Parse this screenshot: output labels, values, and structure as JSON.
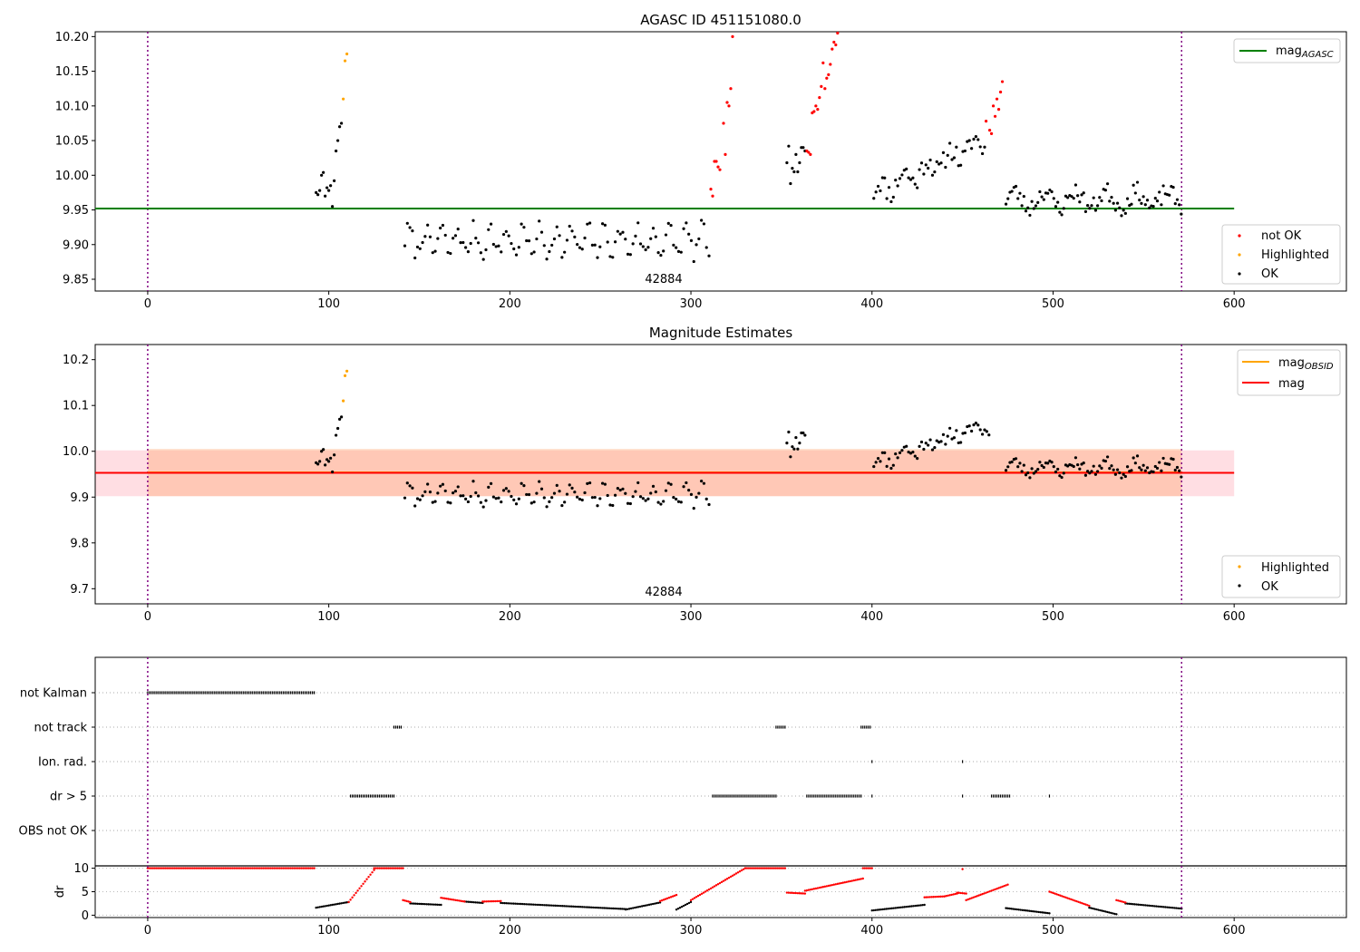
{
  "chart_data": [
    {
      "type": "scatter",
      "title": "AGASC ID 451151080.0",
      "xlim": [
        -29,
        662
      ],
      "ylim": [
        9.833,
        10.207
      ],
      "xticks": [
        0,
        100,
        200,
        300,
        400,
        500,
        600
      ],
      "yticks": [
        9.85,
        9.9,
        9.95,
        10.0,
        10.05,
        10.1,
        10.15,
        10.2
      ],
      "ytick_labels": [
        "9.85",
        "9.90",
        "9.95",
        "10.00",
        "10.05",
        "10.10",
        "10.15",
        "10.20"
      ],
      "vlines": [
        0,
        571
      ],
      "hline": {
        "name": "mag_AGASC",
        "value": 9.952,
        "x_range": [
          -29,
          600
        ],
        "color": "#008000"
      },
      "annotation": {
        "text": "42884",
        "x": 285,
        "y": 9.838
      },
      "legend_line": {
        "label": "mag",
        "sub": "AGASC",
        "color": "#008000"
      },
      "legend_points": [
        {
          "label": "not OK",
          "color": "#ff0000"
        },
        {
          "label": "Highlighted",
          "color": "#ffa500"
        },
        {
          "label": "OK",
          "color": "#000000"
        }
      ],
      "segments": [
        {
          "status": "OK",
          "points": [
            [
              93,
              9.975
            ],
            [
              94,
              9.972
            ],
            [
              95,
              9.978
            ],
            [
              96,
              10.0
            ],
            [
              97,
              10.004
            ],
            [
              98,
              9.97
            ],
            [
              99,
              9.982
            ],
            [
              100,
              9.978
            ],
            [
              101,
              9.985
            ],
            [
              102,
              9.955
            ],
            [
              103,
              9.992
            ],
            [
              104,
              10.035
            ],
            [
              105,
              10.05
            ],
            [
              106,
              10.07
            ],
            [
              107,
              10.075
            ]
          ]
        },
        {
          "status": "Highlighted",
          "points": [
            [
              108,
              10.11
            ],
            [
              109,
              10.165
            ],
            [
              110,
              10.175
            ]
          ]
        },
        {
          "status": "OK",
          "seq": {
            "start": 142,
            "end": 311,
            "step": 1.4,
            "base": 9.905,
            "amp": 0.018,
            "period": 9,
            "jitter": 0.013,
            "seed": 7
          }
        },
        {
          "status": "not OK",
          "points": [
            [
              311,
              9.98
            ],
            [
              312,
              9.97
            ],
            [
              313,
              10.02
            ],
            [
              314,
              10.02
            ],
            [
              315,
              10.012
            ],
            [
              316,
              10.008
            ],
            [
              318,
              10.075
            ],
            [
              319,
              10.03
            ],
            [
              320,
              10.105
            ],
            [
              321,
              10.1
            ],
            [
              322,
              10.125
            ],
            [
              323,
              10.2
            ]
          ]
        },
        {
          "status": "OK",
          "points": [
            [
              353,
              10.018
            ],
            [
              354,
              10.042
            ],
            [
              355,
              9.988
            ],
            [
              356,
              10.01
            ],
            [
              357,
              10.005
            ],
            [
              358,
              10.03
            ],
            [
              359,
              10.005
            ],
            [
              360,
              10.018
            ],
            [
              361,
              10.04
            ],
            [
              362,
              10.04
            ],
            [
              363,
              10.035
            ]
          ]
        },
        {
          "status": "not OK",
          "points": [
            [
              364,
              10.035
            ],
            [
              365,
              10.033
            ],
            [
              366,
              10.03
            ],
            [
              367,
              10.09
            ],
            [
              368,
              10.092
            ],
            [
              369,
              10.1
            ],
            [
              370,
              10.095
            ],
            [
              371,
              10.112
            ],
            [
              372,
              10.128
            ],
            [
              373,
              10.162
            ],
            [
              374,
              10.125
            ],
            [
              375,
              10.14
            ],
            [
              376,
              10.145
            ],
            [
              377,
              10.16
            ],
            [
              378,
              10.182
            ],
            [
              379,
              10.192
            ],
            [
              380,
              10.188
            ],
            [
              381,
              10.205
            ]
          ]
        },
        {
          "status": "OK",
          "seq": {
            "start": 401,
            "end": 463,
            "step": 1.2,
            "base": 9.975,
            "amp": 0.012,
            "period": 13,
            "jitter": 0.016,
            "seed": 11,
            "trend": 0.0012
          }
        },
        {
          "status": "not OK",
          "points": [
            [
              463,
              10.078
            ],
            [
              465,
              10.065
            ],
            [
              466,
              10.06
            ],
            [
              467,
              10.1
            ],
            [
              468,
              10.085
            ],
            [
              469,
              10.11
            ],
            [
              470,
              10.095
            ],
            [
              471,
              10.12
            ],
            [
              472,
              10.135
            ]
          ]
        },
        {
          "status": "OK",
          "seq": {
            "start": 474,
            "end": 571,
            "step": 1.1,
            "base": 9.965,
            "amp": 0.012,
            "period": 17,
            "jitter": 0.013,
            "seed": 23
          }
        }
      ]
    },
    {
      "type": "scatter",
      "title": "Magnitude Estimates",
      "xlim": [
        -29,
        662
      ],
      "ylim": [
        9.667,
        10.233
      ],
      "xticks": [
        0,
        100,
        200,
        300,
        400,
        500,
        600
      ],
      "yticks": [
        9.7,
        9.8,
        9.9,
        10.0,
        10.1,
        10.2
      ],
      "ytick_labels": [
        "9.7",
        "9.8",
        "9.9",
        "10.0",
        "10.1",
        "10.2"
      ],
      "vlines": [
        0,
        571
      ],
      "bands": [
        {
          "x_range": [
            -29,
            600
          ],
          "y_range": [
            9.902,
            10.002
          ],
          "color": "#ffb6c1",
          "opacity": 0.45
        },
        {
          "x_range": [
            0,
            571
          ],
          "y_range": [
            9.902,
            10.005
          ],
          "color": "#ffa060",
          "opacity": 0.35
        }
      ],
      "hlines": [
        {
          "name": "mag_OBSID",
          "value": 9.954,
          "x_range": [
            0,
            571
          ],
          "color": "#ffa500"
        },
        {
          "name": "mag",
          "value": 9.953,
          "x_range": [
            -29,
            600
          ],
          "color": "#ff0000"
        }
      ],
      "annotation": {
        "text": "42884",
        "x": 285,
        "y": 9.69
      },
      "legend_lines": [
        {
          "label": "mag",
          "sub": "OBSID",
          "color": "#ffa500"
        },
        {
          "label": "mag",
          "sub": "",
          "color": "#ff0000"
        }
      ],
      "legend_points": [
        {
          "label": "Highlighted",
          "color": "#ffa500"
        },
        {
          "label": "OK",
          "color": "#000000"
        }
      ],
      "segments": [
        {
          "status": "OK",
          "points": [
            [
              93,
              9.975
            ],
            [
              94,
              9.972
            ],
            [
              95,
              9.978
            ],
            [
              96,
              10.0
            ],
            [
              97,
              10.004
            ],
            [
              98,
              9.97
            ],
            [
              99,
              9.982
            ],
            [
              100,
              9.978
            ],
            [
              101,
              9.985
            ],
            [
              102,
              9.955
            ],
            [
              103,
              9.992
            ],
            [
              104,
              10.035
            ],
            [
              105,
              10.05
            ],
            [
              106,
              10.07
            ],
            [
              107,
              10.075
            ]
          ]
        },
        {
          "status": "Highlighted",
          "points": [
            [
              108,
              10.11
            ],
            [
              109,
              10.165
            ],
            [
              110,
              10.175
            ]
          ]
        },
        {
          "status": "OK",
          "seq": {
            "start": 142,
            "end": 311,
            "step": 1.4,
            "base": 9.905,
            "amp": 0.018,
            "period": 9,
            "jitter": 0.013,
            "seed": 7
          }
        },
        {
          "status": "OK",
          "points": [
            [
              353,
              10.018
            ],
            [
              354,
              10.042
            ],
            [
              355,
              9.988
            ],
            [
              356,
              10.01
            ],
            [
              357,
              10.005
            ],
            [
              358,
              10.03
            ],
            [
              359,
              10.005
            ],
            [
              360,
              10.018
            ],
            [
              361,
              10.04
            ],
            [
              362,
              10.04
            ],
            [
              363,
              10.035
            ]
          ]
        },
        {
          "status": "OK",
          "seq": {
            "start": 401,
            "end": 465,
            "step": 1.2,
            "base": 9.975,
            "amp": 0.012,
            "period": 13,
            "jitter": 0.016,
            "seed": 11,
            "trend": 0.0013
          }
        },
        {
          "status": "OK",
          "seq": {
            "start": 474,
            "end": 571,
            "step": 1.1,
            "base": 9.965,
            "amp": 0.012,
            "period": 17,
            "jitter": 0.013,
            "seed": 23
          }
        }
      ]
    },
    {
      "type": "scatter",
      "title": "",
      "xlim": [
        -29,
        662
      ],
      "categories": [
        "not Kalman",
        "not track",
        "Ion. rad.",
        "dr > 5",
        "OBS not OK"
      ],
      "flags": {
        "not Kalman": [
          [
            0,
            92
          ]
        ],
        "not track": [
          [
            136,
            140
          ],
          [
            347,
            352
          ],
          [
            394,
            399
          ]
        ],
        "Ion. rad.": [
          [
            400,
            400
          ],
          [
            450,
            450
          ]
        ],
        "dr > 5": [
          [
            112,
            136
          ],
          [
            312,
            347
          ],
          [
            364,
            394
          ],
          [
            400,
            400
          ],
          [
            450,
            450
          ],
          [
            466,
            476
          ],
          [
            498,
            498
          ]
        ],
        "OBS not OK": []
      },
      "vlines": [
        0,
        571
      ]
    },
    {
      "type": "scatter",
      "title": "",
      "ylabel": "dr",
      "xlim": [
        -29,
        662
      ],
      "ylim": [
        -0.5,
        10.5
      ],
      "xticks": [
        0,
        100,
        200,
        300,
        400,
        500,
        600
      ],
      "yticks": [
        0,
        5,
        10
      ],
      "ytick_labels": [
        "0",
        "5",
        "10"
      ],
      "vlines": [
        0,
        571
      ],
      "red_ranges": [
        [
          0,
          92,
          10,
          10
        ],
        [
          111,
          125,
          2.8,
          9.6
        ],
        [
          125,
          141,
          10,
          10
        ],
        [
          141,
          145,
          3.2,
          2.8
        ],
        [
          162,
          175,
          3.7,
          2.9
        ],
        [
          185,
          195,
          2.9,
          3
        ],
        [
          283,
          292,
          3.0,
          4.3
        ],
        [
          300,
          330,
          3.2,
          10
        ],
        [
          330,
          352,
          10,
          10
        ],
        [
          353,
          363,
          4.8,
          4.6
        ],
        [
          363,
          395,
          5.2,
          7.8
        ],
        [
          395,
          400,
          10,
          10
        ],
        [
          429,
          440,
          3.8,
          4
        ],
        [
          440,
          447,
          4,
          4.6
        ],
        [
          447,
          452,
          4.8,
          4.6
        ],
        [
          450,
          450,
          9.8,
          9.8
        ],
        [
          452,
          475,
          3.2,
          6.5
        ],
        [
          498,
          520,
          5,
          2
        ],
        [
          535,
          540,
          3.2,
          2.7
        ]
      ],
      "black_ranges": [
        [
          93,
          111,
          1.6,
          2.8
        ],
        [
          145,
          162,
          2.5,
          2.2
        ],
        [
          175,
          185,
          2.9,
          2.6
        ],
        [
          195,
          264,
          2.6,
          1.3
        ],
        [
          264,
          283,
          1.2,
          2.7
        ],
        [
          292,
          300,
          1.2,
          2.8
        ],
        [
          400,
          429,
          1.0,
          2.2
        ],
        [
          474,
          498,
          1.5,
          0.4
        ],
        [
          520,
          535,
          1.6,
          0.2
        ],
        [
          540,
          571,
          2.5,
          1.4
        ]
      ]
    }
  ]
}
